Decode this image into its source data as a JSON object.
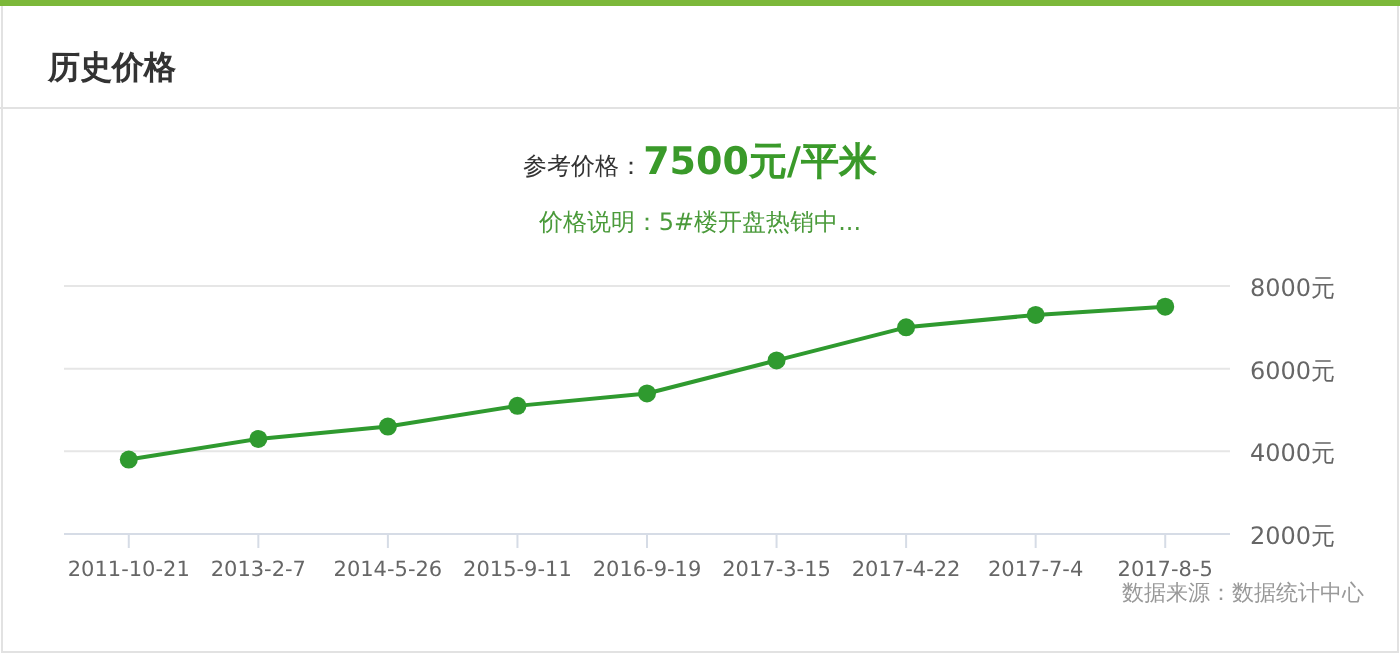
{
  "chart_data": {
    "type": "line",
    "title": "历史价格",
    "annotations": [
      "参考价格：7500元/平米",
      "价格说明：5#楼开盘热销中...",
      "数据来源：数据统计中心"
    ],
    "categories": [
      "2011-10-21",
      "2013-2-7",
      "2014-5-26",
      "2015-9-11",
      "2016-9-19",
      "2017-3-15",
      "2017-4-22",
      "2017-7-4",
      "2017-8-5"
    ],
    "series": [
      {
        "color": "#2f9a2f",
        "values": [
          3800,
          4300,
          4600,
          5100,
          5400,
          6200,
          7000,
          7300,
          7500
        ]
      }
    ],
    "ylim": [
      2000,
      8000
    ],
    "yticks": [
      {
        "value": 2000,
        "label": "2000元"
      },
      {
        "value": 4000,
        "label": "4000元"
      },
      {
        "value": 6000,
        "label": "6000元"
      },
      {
        "value": 8000,
        "label": "8000元"
      }
    ],
    "grid": "y",
    "marker": "circle",
    "line_style": "solid"
  }
}
